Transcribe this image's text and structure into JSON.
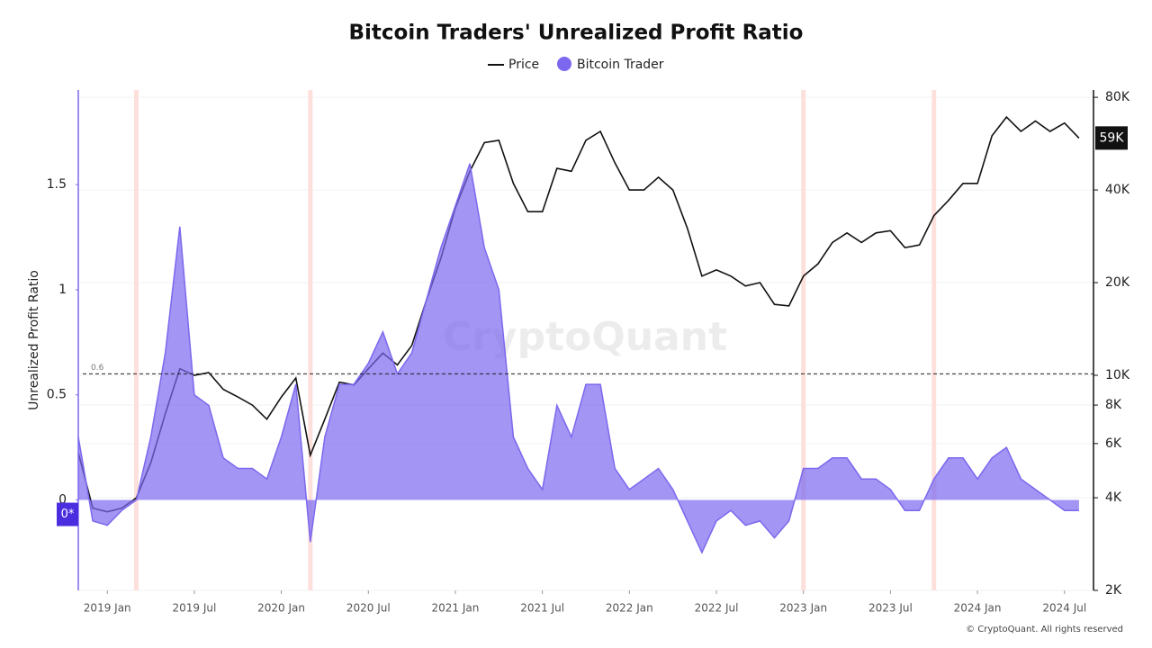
{
  "chart_data": {
    "type": "line-area",
    "title": "Bitcoin Traders' Unrealized Profit Ratio",
    "y_label": "Unrealized Profit Ratio",
    "watermark": "CryptoQuant",
    "footer": "© CryptoQuant. All rights reserved",
    "zero_label": "0*",
    "current_price_label": "59K",
    "current_price": 59000,
    "threshold": 0.6,
    "highlight_months": [
      "2019-03",
      "2020-03",
      "2023-01",
      "2023-10"
    ],
    "x": [
      "2018-11",
      "2018-12",
      "2019-01",
      "2019-02",
      "2019-03",
      "2019-04",
      "2019-05",
      "2019-06",
      "2019-07",
      "2019-08",
      "2019-09",
      "2019-10",
      "2019-11",
      "2019-12",
      "2020-01",
      "2020-02",
      "2020-03",
      "2020-04",
      "2020-05",
      "2020-06",
      "2020-07",
      "2020-08",
      "2020-09",
      "2020-10",
      "2020-11",
      "2020-12",
      "2021-01",
      "2021-02",
      "2021-03",
      "2021-04",
      "2021-05",
      "2021-06",
      "2021-07",
      "2021-08",
      "2021-09",
      "2021-10",
      "2021-11",
      "2021-12",
      "2022-01",
      "2022-02",
      "2022-03",
      "2022-04",
      "2022-05",
      "2022-06",
      "2022-07",
      "2022-08",
      "2022-09",
      "2022-10",
      "2022-11",
      "2022-12",
      "2023-01",
      "2023-02",
      "2023-03",
      "2023-04",
      "2023-05",
      "2023-06",
      "2023-07",
      "2023-08",
      "2023-09",
      "2023-10",
      "2023-11",
      "2023-12",
      "2024-01",
      "2024-02",
      "2024-03",
      "2024-04",
      "2024-05",
      "2024-06",
      "2024-07",
      "2024-08"
    ],
    "xlim": [
      "2018-11",
      "2024-09"
    ],
    "xticks": [
      {
        "value": "2019-01",
        "label": "2019 Jan"
      },
      {
        "value": "2019-07",
        "label": "2019 Jul"
      },
      {
        "value": "2020-01",
        "label": "2020 Jan"
      },
      {
        "value": "2020-07",
        "label": "2020 Jul"
      },
      {
        "value": "2021-01",
        "label": "2021 Jan"
      },
      {
        "value": "2021-07",
        "label": "2021 Jul"
      },
      {
        "value": "2022-01",
        "label": "2022 Jan"
      },
      {
        "value": "2022-07",
        "label": "2022 Jul"
      },
      {
        "value": "2023-01",
        "label": "2023 Jan"
      },
      {
        "value": "2023-07",
        "label": "2023 Jul"
      },
      {
        "value": "2024-01",
        "label": "2024 Jan"
      },
      {
        "value": "2024-07",
        "label": "2024 Jul"
      }
    ],
    "ylim": [
      -0.43,
      1.95
    ],
    "yticks": [
      0,
      0.5,
      1,
      1.5
    ],
    "y2lim": [
      2000,
      84500
    ],
    "y2_log": true,
    "y2ticks": [
      {
        "value": 2000,
        "label": "2K"
      },
      {
        "value": 4000,
        "label": "4K"
      },
      {
        "value": 6000,
        "label": "6K"
      },
      {
        "value": 8000,
        "label": "8K"
      },
      {
        "value": 10000,
        "label": "10K"
      },
      {
        "value": 20000,
        "label": "20K"
      },
      {
        "value": 40000,
        "label": "40K"
      },
      {
        "value": 80000,
        "label": "80K"
      }
    ],
    "series": [
      {
        "name": "Price",
        "color": "#111111",
        "axis": "y2",
        "style": "line",
        "values": [
          5600,
          3700,
          3600,
          3700,
          4000,
          5200,
          7500,
          10500,
          10000,
          10200,
          9000,
          8500,
          8000,
          7200,
          8500,
          9800,
          5500,
          7200,
          9500,
          9300,
          10500,
          11800,
          10800,
          12500,
          17500,
          24000,
          35000,
          46000,
          57000,
          58000,
          42000,
          34000,
          34000,
          47000,
          46000,
          58000,
          62000,
          49000,
          40000,
          40000,
          44000,
          40000,
          30000,
          21000,
          22000,
          21000,
          19500,
          20000,
          17000,
          16800,
          21000,
          23000,
          27000,
          29000,
          27000,
          29000,
          29500,
          26000,
          26500,
          33000,
          37000,
          42000,
          42000,
          60000,
          69000,
          62000,
          67000,
          62000,
          66000,
          59000
        ]
      },
      {
        "name": "Bitcoin Trader",
        "color": "#7b68ee",
        "axis": "y",
        "style": "area",
        "values": [
          0.3,
          -0.1,
          -0.12,
          -0.05,
          0.0,
          0.3,
          0.7,
          1.3,
          0.5,
          0.45,
          0.2,
          0.15,
          0.15,
          0.1,
          0.3,
          0.55,
          -0.2,
          0.3,
          0.55,
          0.55,
          0.65,
          0.8,
          0.6,
          0.7,
          0.95,
          1.2,
          1.4,
          1.6,
          1.2,
          1.0,
          0.3,
          0.15,
          0.05,
          0.45,
          0.3,
          0.55,
          0.55,
          0.15,
          0.05,
          0.1,
          0.15,
          0.05,
          -0.1,
          -0.25,
          -0.1,
          -0.05,
          -0.12,
          -0.1,
          -0.18,
          -0.1,
          0.15,
          0.15,
          0.2,
          0.2,
          0.1,
          0.1,
          0.05,
          -0.05,
          -0.05,
          0.1,
          0.2,
          0.2,
          0.1,
          0.2,
          0.25,
          0.1,
          0.05,
          0.0,
          -0.05,
          -0.05
        ]
      }
    ]
  }
}
